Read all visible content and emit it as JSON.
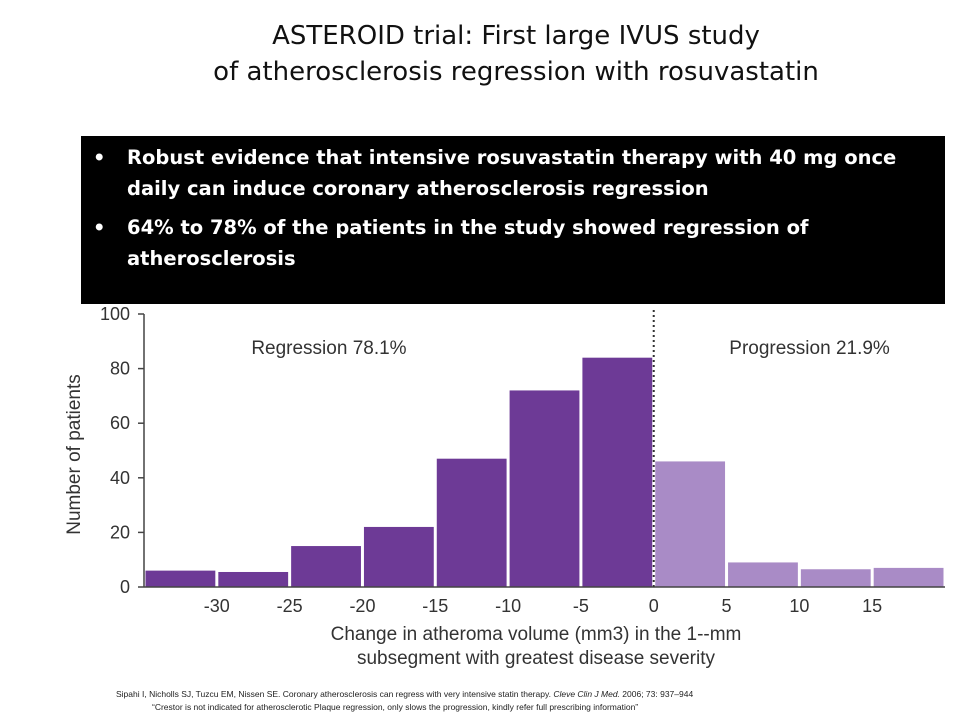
{
  "slide": {
    "title_line1": "ASTEROID trial: First large IVUS study",
    "title_line2": "of atherosclerosis regression with rosuvastatin",
    "bullets": [
      "Robust evidence that intensive rosuvastatin therapy with 40 mg once daily can induce coronary atherosclerosis regression",
      "64% to 78% of the patients in the study showed regression of atherosclerosis"
    ],
    "reference_text": "Sipahi I, Nicholls SJ, Tuzcu EM, Nissen SE. Coronary atherosclerosis can regress with very intensive statin therapy.",
    "reference_journal": "Cleve Clin J Med.",
    "reference_tail": "2006; 73: 937–944",
    "note": "“Crestor is not indicated for atherosclerotic Plaque regression, only slows the progression, kindly refer full prescribing information”"
  },
  "chart_data": {
    "type": "bar",
    "bin_edges": [
      -35,
      -30,
      -25,
      -20,
      -15,
      -10,
      -5,
      0,
      5,
      10,
      15,
      20
    ],
    "values": [
      6,
      5.5,
      15,
      22,
      47,
      72,
      84,
      46,
      9,
      6.5,
      7
    ],
    "groups": [
      "regression",
      "regression",
      "regression",
      "regression",
      "regression",
      "regression",
      "regression",
      "progression",
      "progression",
      "progression",
      "progression"
    ],
    "x_ticks": [
      -30,
      -25,
      -20,
      -15,
      -10,
      -5,
      0,
      5,
      10,
      15
    ],
    "y_ticks": [
      0,
      20,
      40,
      60,
      80,
      100
    ],
    "ylim": [
      0,
      100
    ],
    "xlim": [
      -35,
      20
    ],
    "ylabel": "Number of patients",
    "xlabel_line1": "Change in atheroma volume (mm3) in the 1--mm",
    "xlabel_line2": "subsegment with greatest disease severity",
    "annotations": {
      "regression": "Regression 78.1%",
      "progression": "Progression 21.9%"
    },
    "colors": {
      "regression": "#6d3a96",
      "progression": "#a98bc6",
      "axis": "#444444"
    }
  }
}
